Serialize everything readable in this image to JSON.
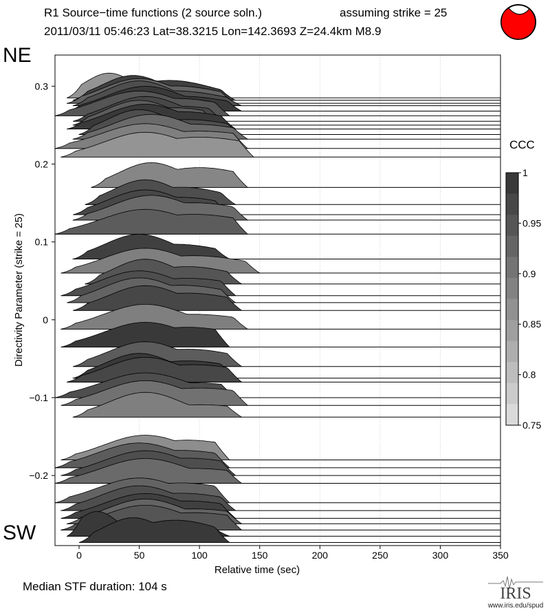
{
  "header": {
    "title_line1": "R1 Source−time functions (2 source soln.)",
    "title_line2": "2011/03/11 05:46:23  Lat=38.3215 Lon=142.3693  Z=24.4km  M8.9",
    "strike_label": "assuming strike = 25"
  },
  "labels": {
    "ne": "NE",
    "sw": "SW",
    "median_stf": "Median STF duration: 104 s",
    "iris": "IRIS",
    "iris_url": "www.iris.edu/spud"
  },
  "colorbar": {
    "title": "CCC",
    "min": 0.75,
    "max": 1,
    "ticks": [
      "1",
      "0.95",
      "0.9",
      "0.85",
      "0.8",
      "0.75"
    ]
  },
  "beachball": {
    "fill": "#ff0000",
    "stroke": "#000000"
  },
  "chart_data": {
    "type": "area",
    "title": "R1 Source−time functions (2 source soln.)",
    "xlabel": "Relative time (sec)",
    "ylabel": "Directivity Parameter (strike = 25)",
    "xlim": [
      -20,
      350
    ],
    "ylim": [
      -0.29,
      0.34
    ],
    "xticks": [
      "0",
      "50",
      "100",
      "150",
      "200",
      "250",
      "300",
      "350"
    ],
    "yticks": [
      "0.3",
      "0.2",
      "0.1",
      "0",
      "−0.1",
      "−0.2"
    ],
    "ytick_values": [
      0.3,
      0.2,
      0.1,
      0,
      -0.1,
      -0.2
    ],
    "grid": "vertical dotted",
    "series": [
      {
        "y": 0.285,
        "start": -10,
        "peak_t": 25,
        "peaks": [
          [
            25,
            1.0
          ],
          [
            45,
            0.7
          ],
          [
            75,
            0.5
          ],
          [
            105,
            0.3
          ]
        ],
        "end": 125,
        "ccc": 0.86
      },
      {
        "y": 0.282,
        "start": -5,
        "peak_t": 45,
        "peaks": [
          [
            45,
            1.0
          ],
          [
            75,
            0.8
          ]
        ],
        "end": 130,
        "ccc": 0.98
      },
      {
        "y": 0.278,
        "start": -10,
        "peak_t": 50,
        "peaks": [
          [
            50,
            1.0
          ],
          [
            80,
            0.7
          ]
        ],
        "end": 130,
        "ccc": 0.93
      },
      {
        "y": 0.275,
        "start": -5,
        "peak_t": 50,
        "peaks": [
          [
            50,
            1.0
          ],
          [
            80,
            0.6
          ]
        ],
        "end": 135,
        "ccc": 0.96
      },
      {
        "y": 0.268,
        "start": -10,
        "peak_t": 55,
        "peaks": [
          [
            55,
            1.0
          ],
          [
            85,
            0.6
          ]
        ],
        "end": 135,
        "ccc": 0.99
      },
      {
        "y": 0.262,
        "start": -20,
        "peak_t": 50,
        "peaks": [
          [
            50,
            1.0
          ],
          [
            80,
            0.7
          ]
        ],
        "end": 125,
        "ccc": 0.95
      },
      {
        "y": 0.255,
        "start": -5,
        "peak_t": 55,
        "peaks": [
          [
            55,
            1.0
          ],
          [
            85,
            0.6
          ]
        ],
        "end": 120,
        "ccc": 0.97
      },
      {
        "y": 0.25,
        "start": -5,
        "peak_t": 50,
        "peaks": [
          [
            50,
            1.0
          ],
          [
            80,
            0.7
          ]
        ],
        "end": 115,
        "ccc": 0.94
      },
      {
        "y": 0.245,
        "start": -10,
        "peak_t": 55,
        "peaks": [
          [
            55,
            1.0
          ],
          [
            85,
            0.7
          ]
        ],
        "end": 130,
        "ccc": 0.99
      },
      {
        "y": 0.238,
        "start": 0,
        "peak_t": 50,
        "peaks": [
          [
            50,
            1.0
          ],
          [
            90,
            0.6
          ]
        ],
        "end": 135,
        "ccc": 0.96
      },
      {
        "y": 0.232,
        "start": -5,
        "peak_t": 60,
        "peaks": [
          [
            60,
            1.0
          ],
          [
            95,
            0.6
          ]
        ],
        "end": 140,
        "ccc": 0.92
      },
      {
        "y": 0.22,
        "start": -20,
        "peak_t": 55,
        "peaks": [
          [
            55,
            1.0
          ],
          [
            100,
            0.7
          ]
        ],
        "end": 140,
        "ccc": 0.89
      },
      {
        "y": 0.209,
        "start": -15,
        "peak_t": 55,
        "peaks": [
          [
            55,
            1.0
          ],
          [
            100,
            0.8
          ]
        ],
        "end": 145,
        "ccc": 0.86
      },
      {
        "y": 0.17,
        "start": 10,
        "peak_t": 60,
        "peaks": [
          [
            60,
            1.0
          ],
          [
            100,
            0.8
          ]
        ],
        "end": 140,
        "ccc": 0.88
      },
      {
        "y": 0.148,
        "start": 5,
        "peak_t": 55,
        "peaks": [
          [
            55,
            1.0
          ],
          [
            85,
            0.7
          ]
        ],
        "end": 130,
        "ccc": 0.96
      },
      {
        "y": 0.135,
        "start": -5,
        "peak_t": 55,
        "peaks": [
          [
            55,
            1.0
          ],
          [
            85,
            0.7
          ]
        ],
        "end": 125,
        "ccc": 0.97
      },
      {
        "y": 0.128,
        "start": -5,
        "peak_t": 60,
        "peaks": [
          [
            60,
            1.0
          ],
          [
            95,
            0.7
          ]
        ],
        "end": 140,
        "ccc": 0.92
      },
      {
        "y": 0.11,
        "start": -20,
        "peak_t": 55,
        "peaks": [
          [
            55,
            1.0
          ],
          [
            95,
            0.8
          ]
        ],
        "end": 140,
        "ccc": 0.94
      },
      {
        "y": 0.078,
        "start": -5,
        "peak_t": 50,
        "peaks": [
          [
            50,
            1.0
          ],
          [
            80,
            0.6
          ]
        ],
        "end": 125,
        "ccc": 0.98
      },
      {
        "y": 0.06,
        "start": -15,
        "peak_t": 55,
        "peaks": [
          [
            55,
            1.0
          ],
          [
            95,
            0.7
          ]
        ],
        "end": 150,
        "ccc": 0.89
      },
      {
        "y": 0.046,
        "start": 5,
        "peak_t": 55,
        "peaks": [
          [
            55,
            1.0
          ],
          [
            90,
            0.7
          ]
        ],
        "end": 135,
        "ccc": 0.95
      },
      {
        "y": 0.031,
        "start": -15,
        "peak_t": 50,
        "peaks": [
          [
            50,
            1.0
          ],
          [
            90,
            0.7
          ]
        ],
        "end": 130,
        "ccc": 0.96
      },
      {
        "y": 0.022,
        "start": -10,
        "peak_t": 50,
        "peaks": [
          [
            50,
            1.0
          ],
          [
            85,
            0.7
          ]
        ],
        "end": 130,
        "ccc": 0.93
      },
      {
        "y": 0.012,
        "start": -5,
        "peak_t": 55,
        "peaks": [
          [
            55,
            1.0
          ],
          [
            90,
            0.7
          ]
        ],
        "end": 135,
        "ccc": 0.97
      },
      {
        "y": -0.012,
        "start": -15,
        "peak_t": 55,
        "peaks": [
          [
            55,
            1.0
          ],
          [
            95,
            0.6
          ]
        ],
        "end": 140,
        "ccc": 0.89
      },
      {
        "y": -0.035,
        "start": -15,
        "peak_t": 55,
        "peaks": [
          [
            55,
            1.0
          ],
          [
            90,
            0.8
          ]
        ],
        "end": 125,
        "ccc": 0.99
      },
      {
        "y": -0.06,
        "start": -5,
        "peak_t": 55,
        "peaks": [
          [
            55,
            1.0
          ],
          [
            90,
            0.7
          ]
        ],
        "end": 135,
        "ccc": 0.94
      },
      {
        "y": -0.075,
        "start": -5,
        "peak_t": 50,
        "peaks": [
          [
            50,
            1.0
          ],
          [
            90,
            0.7
          ]
        ],
        "end": 130,
        "ccc": 0.99
      },
      {
        "y": -0.08,
        "start": -10,
        "peak_t": 55,
        "peaks": [
          [
            55,
            1.0
          ],
          [
            95,
            0.7
          ]
        ],
        "end": 135,
        "ccc": 0.97
      },
      {
        "y": -0.1,
        "start": -20,
        "peak_t": 55,
        "peaks": [
          [
            55,
            1.0
          ],
          [
            95,
            0.6
          ]
        ],
        "end": 130,
        "ccc": 0.96
      },
      {
        "y": -0.11,
        "start": -15,
        "peak_t": 55,
        "peaks": [
          [
            55,
            1.0
          ],
          [
            100,
            0.7
          ]
        ],
        "end": 140,
        "ccc": 0.91
      },
      {
        "y": -0.125,
        "start": -5,
        "peak_t": 55,
        "peaks": [
          [
            55,
            1.0
          ],
          [
            100,
            0.5
          ]
        ],
        "end": 135,
        "ccc": 0.89
      },
      {
        "y": -0.18,
        "start": -15,
        "peak_t": 55,
        "peaks": [
          [
            55,
            1.0
          ],
          [
            90,
            0.8
          ]
        ],
        "end": 125,
        "ccc": 0.87
      },
      {
        "y": -0.19,
        "start": -20,
        "peak_t": 50,
        "peaks": [
          [
            50,
            1.0
          ],
          [
            85,
            0.7
          ]
        ],
        "end": 125,
        "ccc": 0.94
      },
      {
        "y": -0.2,
        "start": -15,
        "peak_t": 55,
        "peaks": [
          [
            55,
            1.0
          ],
          [
            90,
            0.7
          ]
        ],
        "end": 130,
        "ccc": 0.96
      },
      {
        "y": -0.21,
        "start": -20,
        "peak_t": 55,
        "peaks": [
          [
            55,
            1.0
          ],
          [
            95,
            0.6
          ]
        ],
        "end": 135,
        "ccc": 0.92
      },
      {
        "y": -0.235,
        "start": -20,
        "peak_t": 50,
        "peaks": [
          [
            50,
            1.0
          ],
          [
            85,
            0.8
          ]
        ],
        "end": 125,
        "ccc": 0.93
      },
      {
        "y": -0.245,
        "start": -15,
        "peak_t": 50,
        "peaks": [
          [
            50,
            1.0
          ],
          [
            85,
            0.7
          ]
        ],
        "end": 130,
        "ccc": 0.96
      },
      {
        "y": -0.255,
        "start": -15,
        "peak_t": 55,
        "peaks": [
          [
            55,
            1.0
          ],
          [
            90,
            0.7
          ]
        ],
        "end": 130,
        "ccc": 0.98
      },
      {
        "y": -0.262,
        "start": -10,
        "peak_t": 55,
        "peaks": [
          [
            55,
            1.0
          ],
          [
            95,
            0.6
          ]
        ],
        "end": 135,
        "ccc": 0.93
      },
      {
        "y": -0.27,
        "start": -15,
        "peak_t": 55,
        "peaks": [
          [
            55,
            1.0
          ],
          [
            95,
            0.7
          ]
        ],
        "end": 135,
        "ccc": 0.95
      },
      {
        "y": -0.278,
        "start": -10,
        "peak_t": 15,
        "peaks": [
          [
            15,
            1.0
          ],
          [
            40,
            0.6
          ],
          [
            80,
            0.4
          ]
        ],
        "end": 125,
        "ccc": 0.99
      },
      {
        "y": -0.286,
        "start": 0,
        "peak_t": 45,
        "peaks": [
          [
            45,
            1.0
          ],
          [
            80,
            0.9
          ]
        ],
        "end": 125,
        "ccc": 0.99
      }
    ]
  }
}
